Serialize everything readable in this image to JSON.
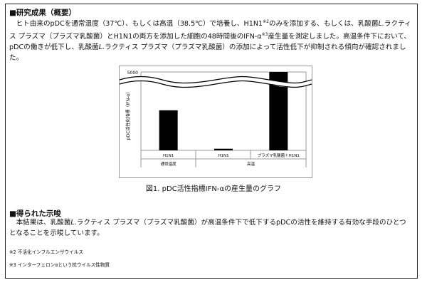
{
  "section1": {
    "title": "■研究成果（概要）",
    "para_html": "　ヒト由来のpDCを通常温度（37℃）、もしくは高温（38.5℃）で培養し、H1N1<sup>※2</sup>のみを添加する、もしくは、乳酸菌<i>L.</i>ラクティス プラズマ（プラズマ乳酸菌）とH1N1の両方を添加した細胞の48時間後のIFN-α<sup>※3</sup>産生量を測定しました。高温条件下において、pDCの働きが低下し、乳酸菌<i>L.</i>ラクティス プラズマ（プラズマ乳酸菌）の添加によって活性低下が抑制される傾向が確認されました。"
  },
  "figure": {
    "caption": "図1. pDC活性指標IFN-αの産生量のグラフ"
  },
  "chart_data": {
    "type": "bar",
    "ylabel": "pDC活性化指標（IFN-α）",
    "ytick_label": "5000",
    "axis_break": true,
    "categories": [
      "H1N1",
      "H1N1",
      "プラズマ乳酸菌＋H1N1"
    ],
    "groups": [
      {
        "label": "通常温度",
        "count": 1
      },
      {
        "label": "高温",
        "count": 2
      }
    ],
    "values": [
      0.74,
      0.03,
      1.0
    ],
    "value_note": "relative bar heights; third bar crosses axis break",
    "bar_color": "#000000"
  },
  "section2": {
    "title": "■得られた示唆",
    "para_html": "　本結果は、乳酸菌<i>L.</i>ラクティス プラズマ（プラズマ乳酸菌）が高温条件下で低下するpDCの活性を維持する有効な手段のひとつとなることを示唆しています。"
  },
  "notes": [
    "※2 不活化インフルエンザウイルス",
    "※3 インターフェロンαという抗ウイルス性物質"
  ]
}
